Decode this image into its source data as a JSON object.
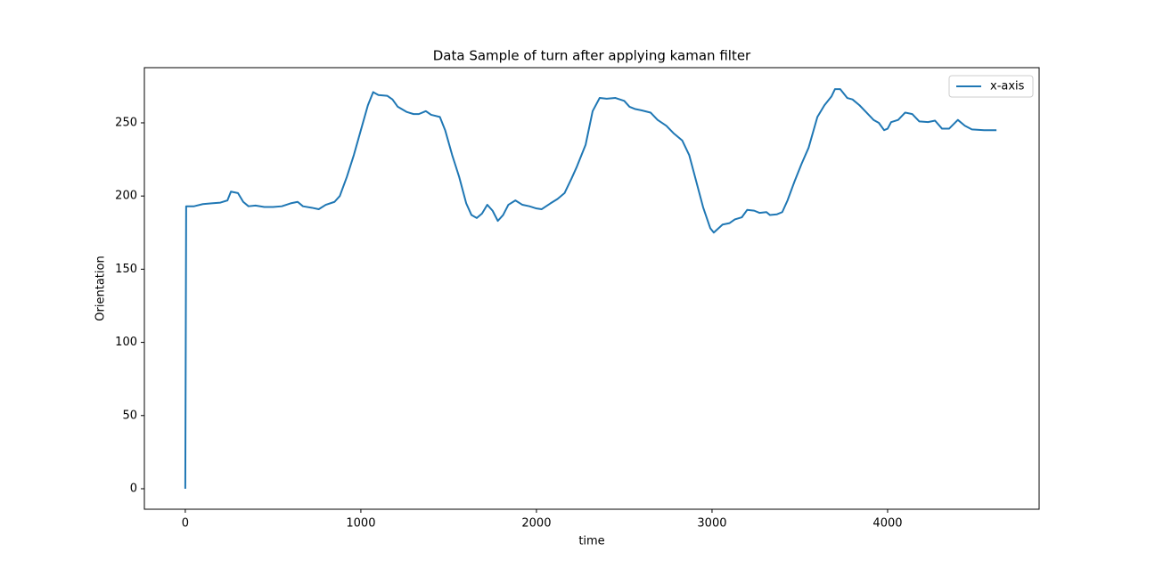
{
  "chart_data": {
    "type": "line",
    "title": "Data Sample of turn after applying kaman filter",
    "x_label": "time",
    "y_label": "Orientation",
    "x": [
      0,
      5,
      50,
      100,
      150,
      200,
      240,
      260,
      300,
      330,
      360,
      400,
      450,
      500,
      550,
      600,
      640,
      670,
      720,
      760,
      800,
      850,
      880,
      920,
      960,
      1000,
      1040,
      1070,
      1100,
      1150,
      1180,
      1210,
      1260,
      1300,
      1330,
      1370,
      1400,
      1450,
      1480,
      1520,
      1560,
      1600,
      1630,
      1660,
      1690,
      1720,
      1750,
      1780,
      1810,
      1840,
      1880,
      1920,
      1960,
      2000,
      2030,
      2080,
      2120,
      2160,
      2200,
      2230,
      2280,
      2320,
      2360,
      2400,
      2450,
      2500,
      2530,
      2560,
      2600,
      2650,
      2690,
      2740,
      2780,
      2830,
      2870,
      2910,
      2950,
      2990,
      3010,
      3060,
      3100,
      3130,
      3170,
      3200,
      3240,
      3270,
      3310,
      3330,
      3370,
      3400,
      3430,
      3470,
      3510,
      3550,
      3600,
      3640,
      3680,
      3700,
      3730,
      3770,
      3800,
      3840,
      3880,
      3920,
      3950,
      3980,
      4000,
      4020,
      4060,
      4100,
      4140,
      4180,
      4230,
      4270,
      4310,
      4350,
      4400,
      4440,
      4480,
      4550,
      4620
    ],
    "series": [
      {
        "name": "x-axis",
        "color": "#1f77b4",
        "values": [
          0,
          193,
          193,
          194.5,
          195,
          195.5,
          197,
          203,
          202,
          196,
          193,
          193.5,
          192.5,
          192.5,
          193,
          195,
          196,
          193,
          192,
          191,
          194,
          196,
          200,
          213,
          228,
          245,
          262,
          271,
          269,
          268.5,
          266,
          261,
          257.5,
          256,
          256,
          258,
          255.5,
          254,
          245,
          228,
          213,
          195,
          187,
          185,
          188,
          194,
          190,
          183,
          187,
          194,
          197,
          194,
          193,
          191.5,
          191,
          195,
          198,
          202,
          212,
          220,
          235,
          258,
          267,
          266.5,
          267,
          265,
          261,
          259.5,
          258.5,
          257,
          252,
          248,
          243,
          238,
          228,
          210,
          192,
          178,
          175,
          180.5,
          181.5,
          184,
          185.5,
          190.5,
          190,
          188.5,
          189,
          187,
          187.5,
          189,
          197,
          210,
          222,
          233,
          254,
          262,
          268,
          273,
          273,
          267,
          266,
          262,
          257,
          252,
          250,
          245,
          246,
          250.5,
          252,
          257,
          256,
          251,
          250.5,
          251.5,
          246,
          246,
          252,
          248,
          245.5,
          245,
          245
        ]
      }
    ],
    "xlim": [
      -233,
      4863
    ],
    "xticks": [
      0,
      1000,
      2000,
      3000,
      4000
    ],
    "ylim": [
      -14,
      287.7
    ],
    "yticks": [
      0,
      50,
      100,
      150,
      200,
      250
    ],
    "legend": "upper right"
  }
}
